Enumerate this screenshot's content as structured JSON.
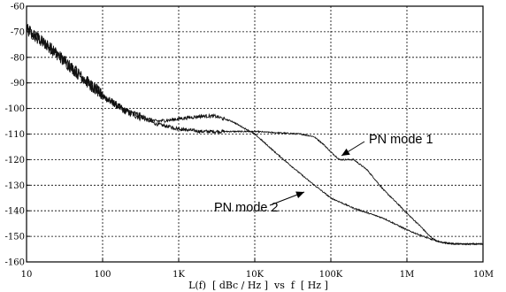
{
  "chart_data": {
    "type": "line",
    "xlabel": "L(f)  [ dBc / Hz ]  vs  f  [ Hz ]",
    "ylabel": "",
    "x_scale": "log",
    "xlim": [
      10,
      10000000
    ],
    "ylim": [
      -160,
      -60
    ],
    "grid": true,
    "x_ticks": [
      {
        "v": 10,
        "label": "10"
      },
      {
        "v": 100,
        "label": "100"
      },
      {
        "v": 1000,
        "label": "1K"
      },
      {
        "v": 10000,
        "label": "10K"
      },
      {
        "v": 100000,
        "label": "100K"
      },
      {
        "v": 1000000,
        "label": "1M"
      },
      {
        "v": 10000000,
        "label": "10M"
      }
    ],
    "y_ticks": [
      {
        "v": -60,
        "label": "-60"
      },
      {
        "v": -70,
        "label": "-70"
      },
      {
        "v": -80,
        "label": "-80"
      },
      {
        "v": -90,
        "label": "-90"
      },
      {
        "v": -100,
        "label": "-100"
      },
      {
        "v": -110,
        "label": "-110"
      },
      {
        "v": -120,
        "label": "-120"
      },
      {
        "v": -130,
        "label": "-130"
      },
      {
        "v": -140,
        "label": "-140"
      },
      {
        "v": -150,
        "label": "-150"
      },
      {
        "v": -160,
        "label": "-160"
      }
    ],
    "series": [
      {
        "name": "PN mode 1",
        "x": [
          10,
          20,
          50,
          100,
          200,
          500,
          1000,
          2000,
          5000,
          10000,
          20000,
          40000,
          60000,
          80000,
          100000,
          130000,
          200000,
          300000,
          500000,
          800000,
          1000000,
          1500000,
          2000000,
          2500000,
          4000000,
          10000000
        ],
        "y": [
          -69,
          -76,
          -87,
          -95,
          -101,
          -106,
          -108,
          -109,
          -109,
          -109,
          -109.5,
          -110,
          -111,
          -114,
          -117,
          -120,
          -120,
          -124,
          -132,
          -138,
          -141,
          -146,
          -150,
          -152,
          -153,
          -153
        ]
      },
      {
        "name": "PN mode 2",
        "x": [
          10,
          20,
          50,
          100,
          200,
          500,
          800,
          1000,
          2000,
          3000,
          5000,
          10000,
          20000,
          50000,
          100000,
          200000,
          500000,
          1000000,
          2000000,
          3000000,
          5000000,
          10000000
        ],
        "y": [
          -69,
          -76,
          -87,
          -95,
          -101,
          -105,
          -104.5,
          -104,
          -103,
          -103,
          -105,
          -110,
          -118,
          -128,
          -135,
          -139,
          -143,
          -147.5,
          -151,
          -152.5,
          -153,
          -153
        ]
      }
    ],
    "annotations": [
      {
        "text": "PN mode 1",
        "series": "PN mode 1",
        "at_x": 150000,
        "at_y": -121
      },
      {
        "text": "PN mode 2",
        "series": "PN mode 2",
        "at_x": 60000,
        "at_y": -132
      }
    ]
  }
}
